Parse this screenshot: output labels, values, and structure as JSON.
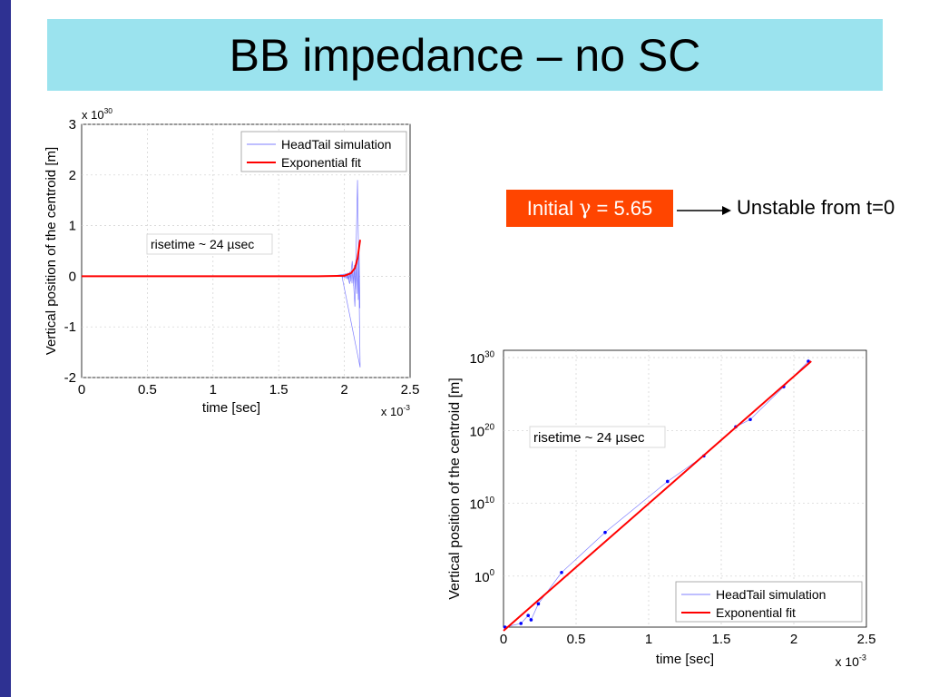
{
  "slide": {
    "title": "BB impedance – no SC",
    "gamma_prefix": "Initial ",
    "gamma_symbol": "γ",
    "gamma_suffix": " = 5.65",
    "note": "Unstable from t=0"
  },
  "colors": {
    "side_bar": "#2e3192",
    "title_bg": "#9be3ee",
    "gamma_box": "#ff4500",
    "fit_line": "#ff0000",
    "sim_line": "#7f7fff"
  },
  "chart_data": [
    {
      "type": "line",
      "scale": "linear",
      "xlabel": "time  [sec]",
      "ylabel": "Vertical position of the centroid  [m]",
      "x_multiplier": {
        "base": "x 10",
        "exp": "-3"
      },
      "y_multiplier": {
        "base": "x 10",
        "exp": "30"
      },
      "xlim": [
        0,
        2.5
      ],
      "ylim": [
        -2,
        3
      ],
      "x_ticks": [
        "0",
        "0.5",
        "1",
        "1.5",
        "2",
        "2.5"
      ],
      "y_ticks": [
        "-2",
        "-1",
        "0",
        "1",
        "2",
        "3"
      ],
      "grid": true,
      "legend_position": "top-right",
      "annotation": "risetime ~ 24 µsec",
      "series": [
        {
          "name": "HeadTail simulation",
          "x": [
            0,
            1.9,
            2.02,
            2.04,
            2.06,
            2.08,
            2.1,
            2.12
          ],
          "y": [
            0,
            0,
            0.05,
            -0.15,
            0.3,
            -0.6,
            1.9,
            -1.8
          ]
        },
        {
          "name": "Exponential fit",
          "x": [
            0,
            1.8,
            2.0,
            2.05,
            2.08,
            2.1,
            2.12
          ],
          "y": [
            0,
            0,
            0.01,
            0.06,
            0.16,
            0.35,
            0.72
          ]
        }
      ]
    },
    {
      "type": "line",
      "scale": "log",
      "xlabel": "time  [sec]",
      "ylabel": "Vertical position of the centroid  [m]",
      "x_multiplier": {
        "base": "x 10",
        "exp": "-3"
      },
      "xlim": [
        0,
        2.5
      ],
      "ylim_exp": [
        -7,
        31
      ],
      "x_ticks": [
        "0",
        "0.5",
        "1",
        "1.5",
        "2",
        "2.5"
      ],
      "y_ticks": [
        {
          "base": "10",
          "exp": "0"
        },
        {
          "base": "10",
          "exp": "10"
        },
        {
          "base": "10",
          "exp": "20"
        },
        {
          "base": "10",
          "exp": "30"
        }
      ],
      "grid": true,
      "legend_position": "bottom-right",
      "annotation": "risetime ~ 24 µsec",
      "series": [
        {
          "name": "HeadTail simulation",
          "x": [
            0.01,
            0.12,
            0.17,
            0.19,
            0.24,
            0.4,
            0.7,
            1.13,
            1.38,
            1.6,
            1.7,
            1.93,
            2.1
          ],
          "log10_y": [
            -7,
            -6.5,
            -5.4,
            -6.0,
            -3.8,
            0.5,
            6,
            13,
            16.5,
            20.5,
            21.5,
            26,
            29.5
          ]
        },
        {
          "name": "Exponential fit",
          "x": [
            0,
            2.12
          ],
          "log10_y": [
            -7.5,
            29.5
          ]
        }
      ]
    }
  ]
}
